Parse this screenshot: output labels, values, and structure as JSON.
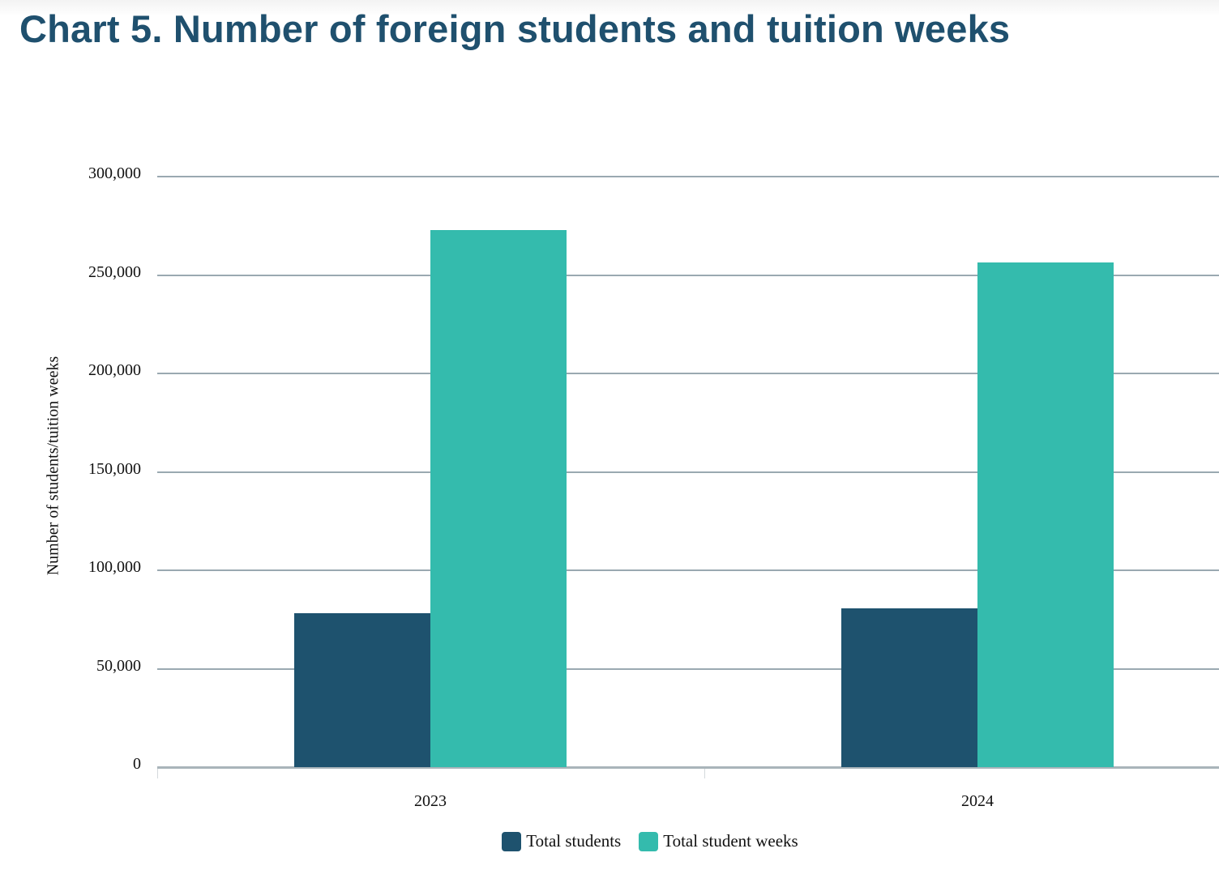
{
  "header": {
    "title": "Chart 5. Number of foreign students and tuition weeks"
  },
  "colors": {
    "title": "#1f506e",
    "total_students": "#1e526e",
    "total_student_weeks": "#34bbad",
    "grid": "#9aa9b1"
  },
  "axis": {
    "ylabel": "Number of students/tuition weeks",
    "yticks": [
      "0",
      "50,000",
      "100,000",
      "150,000",
      "200,000",
      "250,000",
      "300,000"
    ],
    "xticks": [
      "2023",
      "2024"
    ]
  },
  "legend": {
    "items": [
      {
        "label": "Total students"
      },
      {
        "label": "Total student weeks"
      }
    ]
  },
  "chart_data": {
    "type": "bar",
    "title": "Chart 5. Number of foreign students and tuition weeks",
    "categories": [
      "2023",
      "2024"
    ],
    "series": [
      {
        "name": "Total students",
        "color": "#1e526e",
        "values": [
          78200,
          80700
        ]
      },
      {
        "name": "Total student weeks",
        "color": "#34bbad",
        "values": [
          272800,
          256400
        ]
      }
    ],
    "xlabel": "",
    "ylabel": "Number of students/tuition weeks",
    "ylim": [
      0,
      300000
    ],
    "yticks": [
      0,
      50000,
      100000,
      150000,
      200000,
      250000,
      300000
    ],
    "grid": true,
    "legend_position": "bottom"
  }
}
